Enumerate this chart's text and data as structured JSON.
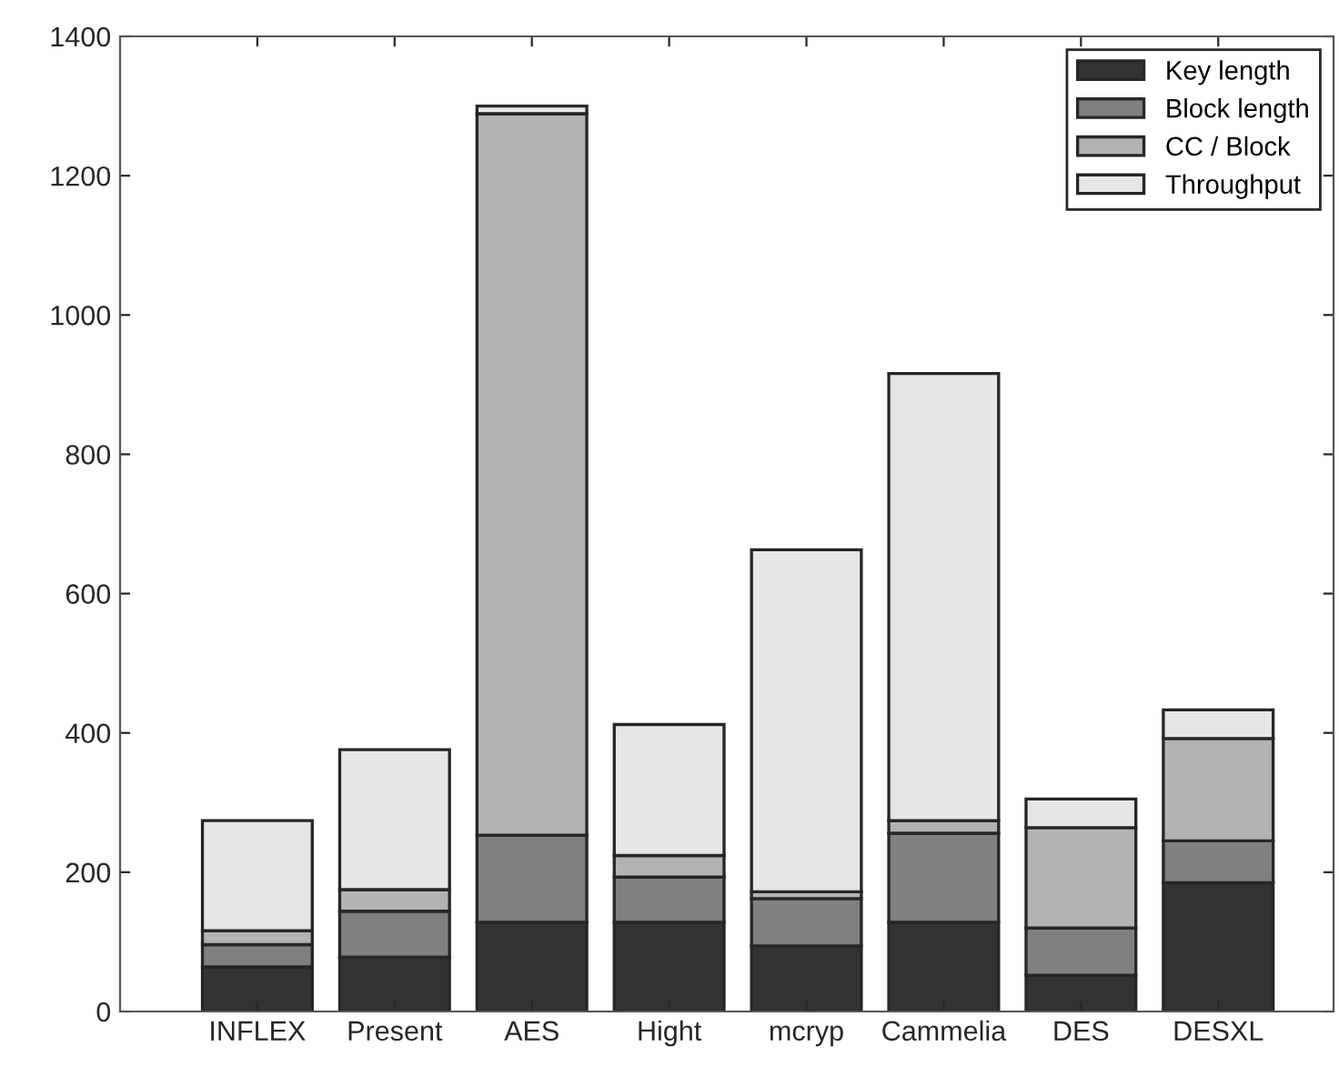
{
  "chart_data": {
    "type": "bar",
    "stacked": true,
    "categories": [
      "INFLEX",
      "Present",
      "AES",
      "Hight",
      "mcryp",
      "Cammelia",
      "DES",
      "DESXL"
    ],
    "series": [
      {
        "name": "Key length",
        "color": "#333333",
        "values": [
          64,
          78,
          128,
          128,
          94,
          128,
          52,
          185
        ]
      },
      {
        "name": "Block length",
        "color": "#808080",
        "values": [
          32,
          66,
          125,
          65,
          68,
          128,
          68,
          60
        ]
      },
      {
        "name": "CC / Block",
        "color": "#b3b3b3",
        "values": [
          20,
          31,
          1036,
          31,
          10,
          18,
          144,
          147
        ]
      },
      {
        "name": "Throughput",
        "color": "#e6e6e6",
        "values": [
          158,
          201,
          11,
          188,
          491,
          642,
          41,
          41
        ]
      }
    ],
    "ylim": [
      0,
      1400
    ],
    "yticks": [
      0,
      200,
      400,
      600,
      800,
      1000,
      1200,
      1400
    ],
    "grid": false,
    "legend": "top right"
  }
}
